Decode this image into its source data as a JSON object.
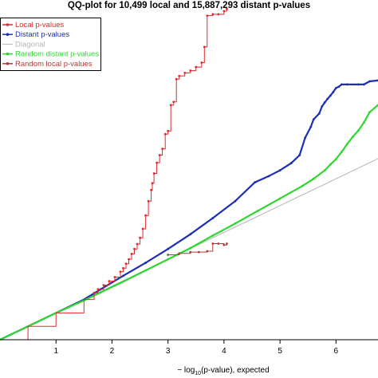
{
  "chart_data": {
    "type": "line",
    "title": "QQ-plot for 10,499 local and 15,887,293 distant p-values",
    "xlabel": "− log10(p-value), expected",
    "xlabel_parts": {
      "prefix": "− log",
      "sub": "10",
      "suffix": "(p-value), expected"
    },
    "xlim": [
      0,
      6.75
    ],
    "ylim": [
      0,
      7.35
    ],
    "x_ticks": [
      1,
      2,
      3,
      4,
      5,
      6
    ],
    "grid": false,
    "legend_position": "top-left",
    "legend_entries": [
      {
        "label": "Local p-values",
        "color": "#e8262a",
        "marker": true
      },
      {
        "label": "Distant p-values",
        "color": "#1f2fb5",
        "marker": true
      },
      {
        "label": "Diagonal",
        "color": "#b5b5b5",
        "marker": false
      },
      {
        "label": "Random distant p-values",
        "color": "#2fd62f",
        "marker": true
      },
      {
        "label": "Random local p-values",
        "color": "#b33a3a",
        "marker": true
      }
    ],
    "series": [
      {
        "name": "Diagonal",
        "color": "#b5b5b5",
        "style": "line",
        "x": [
          0,
          6.75
        ],
        "y": [
          0,
          4.05
        ]
      },
      {
        "name": "Distant p-values",
        "color": "#1f2fb5",
        "style": "line",
        "x": [
          0,
          0.5,
          1,
          1.5,
          1.8,
          2.2,
          2.6,
          3.0,
          3.4,
          3.8,
          4.2,
          4.55,
          4.8,
          5.0,
          5.2,
          5.35,
          5.45,
          5.55,
          5.6,
          5.7,
          5.75,
          5.8,
          5.85,
          5.9,
          5.95,
          6.0,
          6.05,
          6.1,
          6.2,
          6.4,
          6.5,
          6.6,
          6.75
        ],
        "y": [
          0,
          0.3,
          0.6,
          0.9,
          1.13,
          1.43,
          1.72,
          2.03,
          2.36,
          2.72,
          3.1,
          3.52,
          3.66,
          3.79,
          3.95,
          4.13,
          4.52,
          4.76,
          4.93,
          5.06,
          5.22,
          5.31,
          5.39,
          5.46,
          5.54,
          5.63,
          5.66,
          5.71,
          5.71,
          5.71,
          5.71,
          5.78,
          5.8
        ]
      },
      {
        "name": "Random distant p-values",
        "color": "#2fd62f",
        "style": "line",
        "x": [
          0,
          0.5,
          1,
          1.5,
          1.8,
          2.2,
          2.6,
          3.0,
          3.4,
          3.8,
          4.2,
          4.6,
          5.0,
          5.4,
          5.6,
          5.8,
          5.9,
          6.0,
          6.1,
          6.2,
          6.3,
          6.4,
          6.5,
          6.6,
          6.75
        ],
        "y": [
          0,
          0.3,
          0.6,
          0.88,
          1.06,
          1.3,
          1.55,
          1.8,
          2.05,
          2.33,
          2.6,
          2.88,
          3.16,
          3.44,
          3.6,
          3.79,
          3.92,
          4.04,
          4.2,
          4.38,
          4.54,
          4.68,
          4.86,
          5.09,
          5.25
        ]
      },
      {
        "name": "Random local p-values",
        "color": "#b33a3a",
        "style": "step",
        "x": [
          3.0,
          3.2,
          3.4,
          3.55,
          3.7,
          3.8,
          3.9,
          4.0,
          4.05
        ],
        "y": [
          1.9,
          1.93,
          1.96,
          1.96,
          1.98,
          2.15,
          2.15,
          2.12,
          2.15
        ]
      },
      {
        "name": "Local p-values",
        "color": "#e8262a",
        "style": "step",
        "x": [
          0,
          0.5,
          1,
          1.5,
          1.68,
          1.75,
          1.85,
          1.95,
          2.05,
          2.15,
          2.2,
          2.25,
          2.3,
          2.35,
          2.4,
          2.45,
          2.5,
          2.55,
          2.6,
          2.65,
          2.7,
          2.72,
          2.75,
          2.8,
          2.85,
          2.9,
          2.95,
          3.0,
          3.05,
          3.1,
          3.15,
          3.2,
          3.3,
          3.4,
          3.5,
          3.6,
          3.65,
          3.7,
          3.8,
          3.9,
          4.0,
          4.05
        ],
        "y": [
          0,
          0.3,
          0.6,
          0.9,
          1.05,
          1.13,
          1.22,
          1.31,
          1.4,
          1.52,
          1.6,
          1.7,
          1.8,
          1.92,
          2.03,
          2.14,
          2.28,
          2.48,
          2.78,
          3.1,
          3.35,
          3.5,
          3.72,
          3.96,
          4.13,
          4.27,
          4.6,
          4.67,
          5.25,
          5.32,
          5.83,
          5.9,
          5.97,
          6.02,
          6.1,
          6.2,
          6.55,
          7.25,
          7.28,
          7.28,
          7.35,
          7.4
        ]
      }
    ]
  }
}
